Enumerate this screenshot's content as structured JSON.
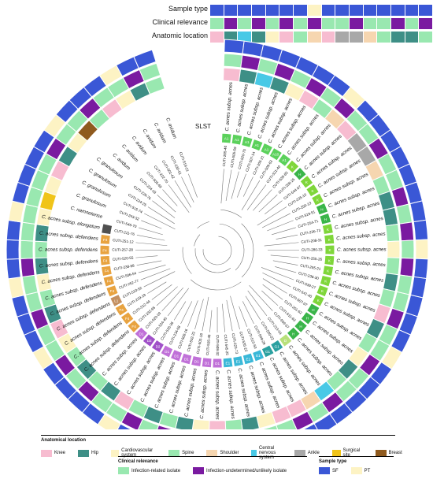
{
  "header": {
    "sample_type_label": "Sample type",
    "clinical_label": "Clinical relevance",
    "anatomic_label": "Anatomic location"
  },
  "colors": {
    "Knee": "#f7bcd0",
    "Hip": "#3e8f86",
    "Cardiovascular system": "#fdf3c4",
    "Spine": "#99e8b0",
    "Shoulder": "#f6d6b0",
    "Central nervous system": "#48c9e6",
    "Ankle": "#a8a8a8",
    "Surgical site": "#f0c419",
    "Breast": "#8f5a1e",
    "Infection-related isolate": "#99e8b0",
    "Infection-undetermined/unlikely isolate": "#7a1aa0",
    "SF": "#3a57d6",
    "PT": "#fdf3c4",
    "sl_A1": "#5bd15b",
    "sl_K": "#7fd63a",
    "sl_H": "#3ab54a",
    "sl_D": "#b8e07a",
    "sl_C": "#f5e05a",
    "sl_F": "#e8a340",
    "sl_L": "#c49060",
    "sl_D1": "#c070d8",
    "sl_D2": "#a050c8",
    "sl_E": "#3ab8d8",
    "sl_G": "#2aa0a0",
    "sl_X": "#505050"
  },
  "slst_label": "SLST",
  "isolates": [
    {
      "id": "CUTI-205-40",
      "taxon": "C. acnes subsp. acnes",
      "slst": "A1",
      "sl_key": "sl_A1",
      "loc": "Knee",
      "rel": "Infection-related isolate",
      "type": "SF"
    },
    {
      "id": "CUTI-505-59",
      "taxon": "C. acnes subsp. acnes",
      "slst": "A1",
      "sl_key": "sl_A1",
      "loc": "Hip",
      "rel": "Infection-undetermined/unlikely isolate",
      "type": "SF"
    },
    {
      "id": "CUTI-520-75",
      "taxon": "C. acnes subsp. acnes",
      "slst": "A1",
      "sl_key": "sl_A1",
      "loc": "Central nervous system",
      "rel": "Infection-related isolate",
      "type": "SF"
    },
    {
      "id": "CUTI-507-14",
      "taxon": "C. acnes subsp. acnes",
      "slst": "A1",
      "sl_key": "sl_A1",
      "loc": "Hip",
      "rel": "Infection-undetermined/unlikely isolate",
      "type": "SF"
    },
    {
      "id": "CUTI-205-21",
      "taxon": "C. acnes subsp. acnes",
      "slst": "A1",
      "sl_key": "sl_A1",
      "loc": "Cardiovascular system",
      "rel": "Infection-related isolate",
      "type": "SF"
    },
    {
      "id": "CUTI-509-63",
      "taxon": "C. acnes subsp. acnes",
      "slst": "A10",
      "sl_key": "sl_A1",
      "loc": "Knee",
      "rel": "Infection-undetermined/unlikely isolate",
      "type": "SF"
    },
    {
      "id": "CUTI-521-40",
      "taxon": "C. acnes subsp. acnes",
      "slst": "A1",
      "sl_key": "sl_A1",
      "loc": "Spine",
      "rel": "Infection-related isolate",
      "type": "SF"
    },
    {
      "id": "CUTI-535-83",
      "taxon": "C. acnes subsp. acnes",
      "slst": "K",
      "sl_key": "sl_K",
      "loc": "Shoulder",
      "rel": "Infection-undetermined/unlikely isolate",
      "type": "PT"
    },
    {
      "id": "CUTI-206-25",
      "taxon": "C. acnes subsp. acnes",
      "slst": "H",
      "sl_key": "sl_H",
      "loc": "Knee",
      "rel": "Infection-related isolate",
      "type": "SF"
    },
    {
      "id": "CUTI-544-67",
      "taxon": "C. acnes subsp. acnes",
      "slst": "K",
      "sl_key": "sl_K",
      "loc": "Ankle",
      "rel": "Infection-related isolate",
      "type": "SF"
    },
    {
      "id": "CUTI-235-10",
      "taxon": "C. acnes subsp. acnes",
      "slst": "K",
      "sl_key": "sl_K",
      "loc": "Ankle",
      "rel": "Infection-undetermined/unlikely isolate",
      "type": "SF"
    },
    {
      "id": "CUTI-250-13",
      "taxon": "C. acnes subsp. acnes",
      "slst": "K",
      "sl_key": "sl_K",
      "loc": "Shoulder",
      "rel": "Infection-related isolate",
      "type": "SF"
    },
    {
      "id": "CUTI-519-51",
      "taxon": "C. acnes subsp. acnes",
      "slst": "H",
      "sl_key": "sl_H",
      "loc": "Spine",
      "rel": "Infection-related isolate",
      "type": "SF"
    },
    {
      "id": "CUTI-254-71",
      "taxon": "C. acnes subsp. acnes",
      "slst": "H",
      "sl_key": "sl_H",
      "loc": "Hip",
      "rel": "Infection-undetermined/unlikely isolate",
      "type": "SF"
    },
    {
      "id": "CUTI-236-73",
      "taxon": "C. acnes subsp. acnes",
      "slst": "K",
      "sl_key": "sl_K",
      "loc": "Hip",
      "rel": "Infection-related isolate",
      "type": "SF"
    },
    {
      "id": "CUTI-208-31",
      "taxon": "C. acnes subsp. acnes",
      "slst": "K",
      "sl_key": "sl_K",
      "loc": "Spine",
      "rel": "Infection-undetermined/unlikely isolate",
      "type": "SF"
    },
    {
      "id": "CUTI-280-33",
      "taxon": "C. acnes subsp. acnes",
      "slst": "K",
      "sl_key": "sl_K",
      "loc": "Cardiovascular system",
      "rel": "Infection-related isolate",
      "type": "PT"
    },
    {
      "id": "CUTI-255-26",
      "taxon": "C. acnes subsp. acnes",
      "slst": "K",
      "sl_key": "sl_K",
      "loc": "Spine",
      "rel": "Infection-undetermined/unlikely isolate",
      "type": "SF"
    },
    {
      "id": "CUTI-255-21",
      "taxon": "C. acnes subsp. acnes",
      "slst": "K",
      "sl_key": "sl_K",
      "loc": "Hip",
      "rel": "Infection-related isolate",
      "type": "SF"
    },
    {
      "id": "CUTI-238-30",
      "taxon": "C. acnes subsp. acnes",
      "slst": "K",
      "sl_key": "sl_K",
      "loc": "Spine",
      "rel": "Infection-related isolate",
      "type": "SF"
    },
    {
      "id": "CUTI-539-27",
      "taxon": "C. acnes subsp. acnes",
      "slst": "K",
      "sl_key": "sl_K",
      "loc": "Knee",
      "rel": "Infection-undetermined/unlikely isolate",
      "type": "SF"
    },
    {
      "id": "CUTI-541-40",
      "taxon": "C. acnes subsp. acnes",
      "slst": "K",
      "sl_key": "sl_K",
      "loc": "Hip",
      "rel": "Infection-related isolate",
      "type": "SF"
    },
    {
      "id": "CUTI-507-07",
      "taxon": "C. acnes subsp. acnes",
      "slst": "H",
      "sl_key": "sl_H",
      "loc": "Spine",
      "rel": "Infection-related isolate",
      "type": "PT"
    },
    {
      "id": "CUTI-251-62",
      "taxon": "C. acnes subsp. acnes",
      "slst": "H",
      "sl_key": "sl_H",
      "loc": "Cardiovascular system",
      "rel": "Infection-undetermined/unlikely isolate",
      "type": "SF"
    },
    {
      "id": "CUTI-511-63",
      "taxon": "C. acnes subsp. acnes",
      "slst": "H",
      "sl_key": "sl_H",
      "loc": "Hip",
      "rel": "Infection-related isolate",
      "type": "SF"
    },
    {
      "id": "CUTI-509-57",
      "taxon": "C. acnes subsp. acnes",
      "slst": "H",
      "sl_key": "sl_H",
      "loc": "Spine",
      "rel": "Infection-related isolate",
      "type": "SF"
    },
    {
      "id": "CUTI-213-04",
      "taxon": "C. acnes subsp. acnes",
      "slst": "D",
      "sl_key": "sl_D",
      "loc": "Central nervous system",
      "rel": "Infection-undetermined/unlikely isolate",
      "type": "SF"
    },
    {
      "id": "CUTI-505-02",
      "taxon": "C. acnes subsp. acnes",
      "slst": "G1",
      "sl_key": "sl_G",
      "loc": "Shoulder",
      "rel": "Infection-related isolate",
      "type": "SF"
    },
    {
      "id": "CUTI-509-29",
      "taxon": "C. acnes subsp. acnes",
      "slst": "G1",
      "sl_key": "sl_G",
      "loc": "Knee",
      "rel": "Infection-undetermined/unlikely isolate",
      "type": "SF"
    },
    {
      "id": "CUTI-515-50",
      "taxon": "C. acnes subsp. acnes",
      "slst": "E1",
      "sl_key": "sl_E",
      "loc": "Knee",
      "rel": "Infection-related isolate",
      "type": "SF"
    },
    {
      "id": "CUTI-535-22",
      "taxon": "C. acnes subsp. acnes",
      "slst": "E1",
      "sl_key": "sl_E",
      "loc": "Cardiovascular system",
      "rel": "Infection-related isolate",
      "type": "PT"
    },
    {
      "id": "CUTI-223-73",
      "taxon": "C. acnes subsp. acnes",
      "slst": "E1",
      "sl_key": "sl_E",
      "loc": "Hip",
      "rel": "Infection-undetermined/unlikely isolate",
      "type": "SF"
    },
    {
      "id": "CUTI-545-25",
      "taxon": "C. acnes subsp. acnes",
      "slst": "E1",
      "sl_key": "sl_E",
      "loc": "Spine",
      "rel": "Infection-related isolate",
      "type": "SF"
    },
    {
      "id": "CUTI-508-32",
      "taxon": "C. acnes subsp. acnes",
      "slst": "D1",
      "sl_key": "sl_D1",
      "loc": "Knee",
      "rel": "Infection-related isolate",
      "type": "SF"
    },
    {
      "id": "CUTI-515-46",
      "taxon": "C. acnes subsp. acnes",
      "slst": "D1",
      "sl_key": "sl_D1",
      "loc": "Cardiovascular system",
      "rel": "Infection-undetermined/unlikely isolate",
      "type": "PT"
    },
    {
      "id": "CUTI-502-18",
      "taxon": "C. acnes subsp. acnes",
      "slst": "D1",
      "sl_key": "sl_D1",
      "loc": "Hip",
      "rel": "Infection-related isolate",
      "type": "SF"
    },
    {
      "id": "CUTI-502-22",
      "taxon": "C. acnes subsp. acnes",
      "slst": "D1",
      "sl_key": "sl_D1",
      "loc": "Spine",
      "rel": "Infection-undetermined/unlikely isolate",
      "type": "SF"
    },
    {
      "id": "CUTI-508-16",
      "taxon": "C. acnes subsp. acnes",
      "slst": "D1",
      "sl_key": "sl_D1",
      "loc": "Hip",
      "rel": "Infection-related isolate",
      "type": "SF"
    },
    {
      "id": "CUTI-234-08",
      "taxon": "C. acnes subsp. acnes",
      "slst": "D1",
      "sl_key": "sl_D1",
      "loc": "Spine",
      "rel": "Infection-undetermined/unlikely isolate",
      "type": "SF"
    },
    {
      "id": "CUTI-526-36",
      "taxon": "C. acnes subsp. acnes",
      "slst": "D2",
      "sl_key": "sl_D2",
      "loc": "Knee",
      "rel": "Infection-related isolate",
      "type": "PT"
    },
    {
      "id": "CUTI-524-45",
      "taxon": "C. acnes subsp. acnes",
      "slst": "D2",
      "sl_key": "sl_D2",
      "loc": "Hip",
      "rel": "Infection-related isolate",
      "type": "SF"
    },
    {
      "id": "CUTI-520-03",
      "taxon": "C. acnes subsp. acnes",
      "slst": "D1",
      "sl_key": "sl_D1",
      "loc": "Spine",
      "rel": "Infection-undetermined/unlikely isolate",
      "type": "SF"
    },
    {
      "id": "CUTI-232-65",
      "taxon": "C. acnes subsp. defendens",
      "slst": "F4",
      "sl_key": "sl_F",
      "loc": "Hip",
      "rel": "Infection-related isolate",
      "type": "SF"
    },
    {
      "id": "CUTI-512-44",
      "taxon": "C. acnes subsp. defendens",
      "slst": "F4",
      "sl_key": "sl_F",
      "loc": "Spine",
      "rel": "Infection-undetermined/unlikely isolate",
      "type": "SF"
    },
    {
      "id": "CUTI-229-19",
      "taxon": "C. acnes subsp. defendens",
      "slst": "F4",
      "sl_key": "sl_F",
      "loc": "Cardiovascular system",
      "rel": "Infection-related isolate",
      "type": "PT"
    },
    {
      "id": "CUTI-510-52",
      "taxon": "C. acnes subsp. defendens",
      "slst": "L1",
      "sl_key": "sl_L",
      "loc": "Knee",
      "rel": "Infection-related isolate",
      "type": "SF"
    },
    {
      "id": "CUTI-252-77",
      "taxon": "C. acnes subsp. defendens",
      "slst": "F4",
      "sl_key": "sl_F",
      "loc": "Hip",
      "rel": "Infection-undetermined/unlikely isolate",
      "type": "SF"
    },
    {
      "id": "CUTI-506-54",
      "taxon": "C. acnes subsp. defendens",
      "slst": "F4",
      "sl_key": "sl_F",
      "loc": "Spine",
      "rel": "Infection-related isolate",
      "type": "SF"
    },
    {
      "id": "CUTI-238-58",
      "taxon": "C. acnes subsp. defendens",
      "slst": "F4",
      "sl_key": "sl_F",
      "loc": "Cardiovascular system",
      "rel": "Infection-related isolate",
      "type": "PT"
    },
    {
      "id": "CUTI-520-55",
      "taxon": "C. acnes subsp. defendens",
      "slst": "F4",
      "sl_key": "sl_F",
      "loc": "Hip",
      "rel": "Infection-undetermined/unlikely isolate",
      "type": "SF"
    },
    {
      "id": "CUTI-257-28",
      "taxon": "C. acnes subsp. defendens",
      "slst": "F4",
      "sl_key": "sl_F",
      "loc": "Spine",
      "rel": "Infection-related isolate",
      "type": "SF"
    },
    {
      "id": "CUTI-251-12",
      "taxon": "C. acnes subsp. defendens",
      "slst": "F4",
      "sl_key": "sl_F",
      "loc": "Hip",
      "rel": "Infection-related isolate",
      "type": "SF"
    },
    {
      "id": "CUTI-211-76",
      "taxon": "C. acnes subsp. elongatum",
      "slst": "",
      "sl_key": "sl_X",
      "loc": "Cardiovascular system",
      "rel": "Infection-related isolate",
      "type": "PT"
    },
    {
      "id": "CUTI-546-70",
      "taxon": "C. namnetense",
      "slst": "",
      "sl_key": "",
      "loc": "Surgical site",
      "rel": "Infection-related isolate",
      "type": "SF"
    },
    {
      "id": "CUTI-243-32",
      "taxon": "C. granulosum",
      "slst": "",
      "sl_key": "",
      "loc": "Cardiovascular system",
      "rel": "Infection-related isolate",
      "type": "SF"
    },
    {
      "id": "CUTI-515-74",
      "taxon": "C. granulosum",
      "slst": "",
      "sl_key": "",
      "loc": "Knee",
      "rel": "Infection-related isolate",
      "type": "SF"
    },
    {
      "id": "CUTI-224-25",
      "taxon": "C. granulosum",
      "slst": "",
      "sl_key": "",
      "loc": "Hip",
      "rel": "Infection-undetermined/unlikely isolate",
      "type": "SF"
    },
    {
      "id": "CUTI-229-76",
      "taxon": "C. granulosum",
      "slst": "",
      "sl_key": "",
      "loc": "Cardiovascular system",
      "rel": "Infection-related isolate",
      "type": "PT"
    },
    {
      "id": "CUTI-224-18",
      "taxon": "C. avidum",
      "slst": "",
      "sl_key": "",
      "loc": "Breast",
      "rel": "Infection-related isolate",
      "type": "SF"
    },
    {
      "id": "CUTI-505-69",
      "taxon": "C. avidum",
      "slst": "",
      "sl_key": "",
      "loc": "Spine",
      "rel": "Infection-undetermined/unlikely isolate",
      "type": "SF"
    },
    {
      "id": "CUTI-222-70",
      "taxon": "C. avidum",
      "slst": "",
      "sl_key": "",
      "loc": "Knee",
      "rel": "Infection-related isolate",
      "type": "SF"
    },
    {
      "id": "CUTI-501-42",
      "taxon": "C. avidum",
      "slst": "",
      "sl_key": "",
      "loc": "Cardiovascular system",
      "rel": "Infection-related isolate",
      "type": "PT"
    },
    {
      "id": "CUTI-230-51",
      "taxon": "C. avidum",
      "slst": "",
      "sl_key": "",
      "loc": "Hip",
      "rel": "Infection-undetermined/unlikely isolate",
      "type": "SF"
    },
    {
      "id": "CUTI-519-21",
      "taxon": "C. avidum",
      "slst": "",
      "sl_key": "",
      "loc": "Spine",
      "rel": "Infection-related isolate",
      "type": "SF"
    }
  ],
  "legend": {
    "anatomical_title": "Anatomical location",
    "anatomical_items": [
      "Knee",
      "Hip",
      "Cardiovascular system",
      "Spine",
      "Shoulder",
      "Central nervous system",
      "Ankle",
      "Surgical site",
      "Breast"
    ],
    "clinical_title": "Clinical relevance",
    "clinical_items": [
      "Infection-related isolate",
      "Infection-undetermined/unlikely isolate"
    ],
    "sample_title": "Sample type",
    "sample_items": [
      "SF",
      "PT"
    ]
  }
}
